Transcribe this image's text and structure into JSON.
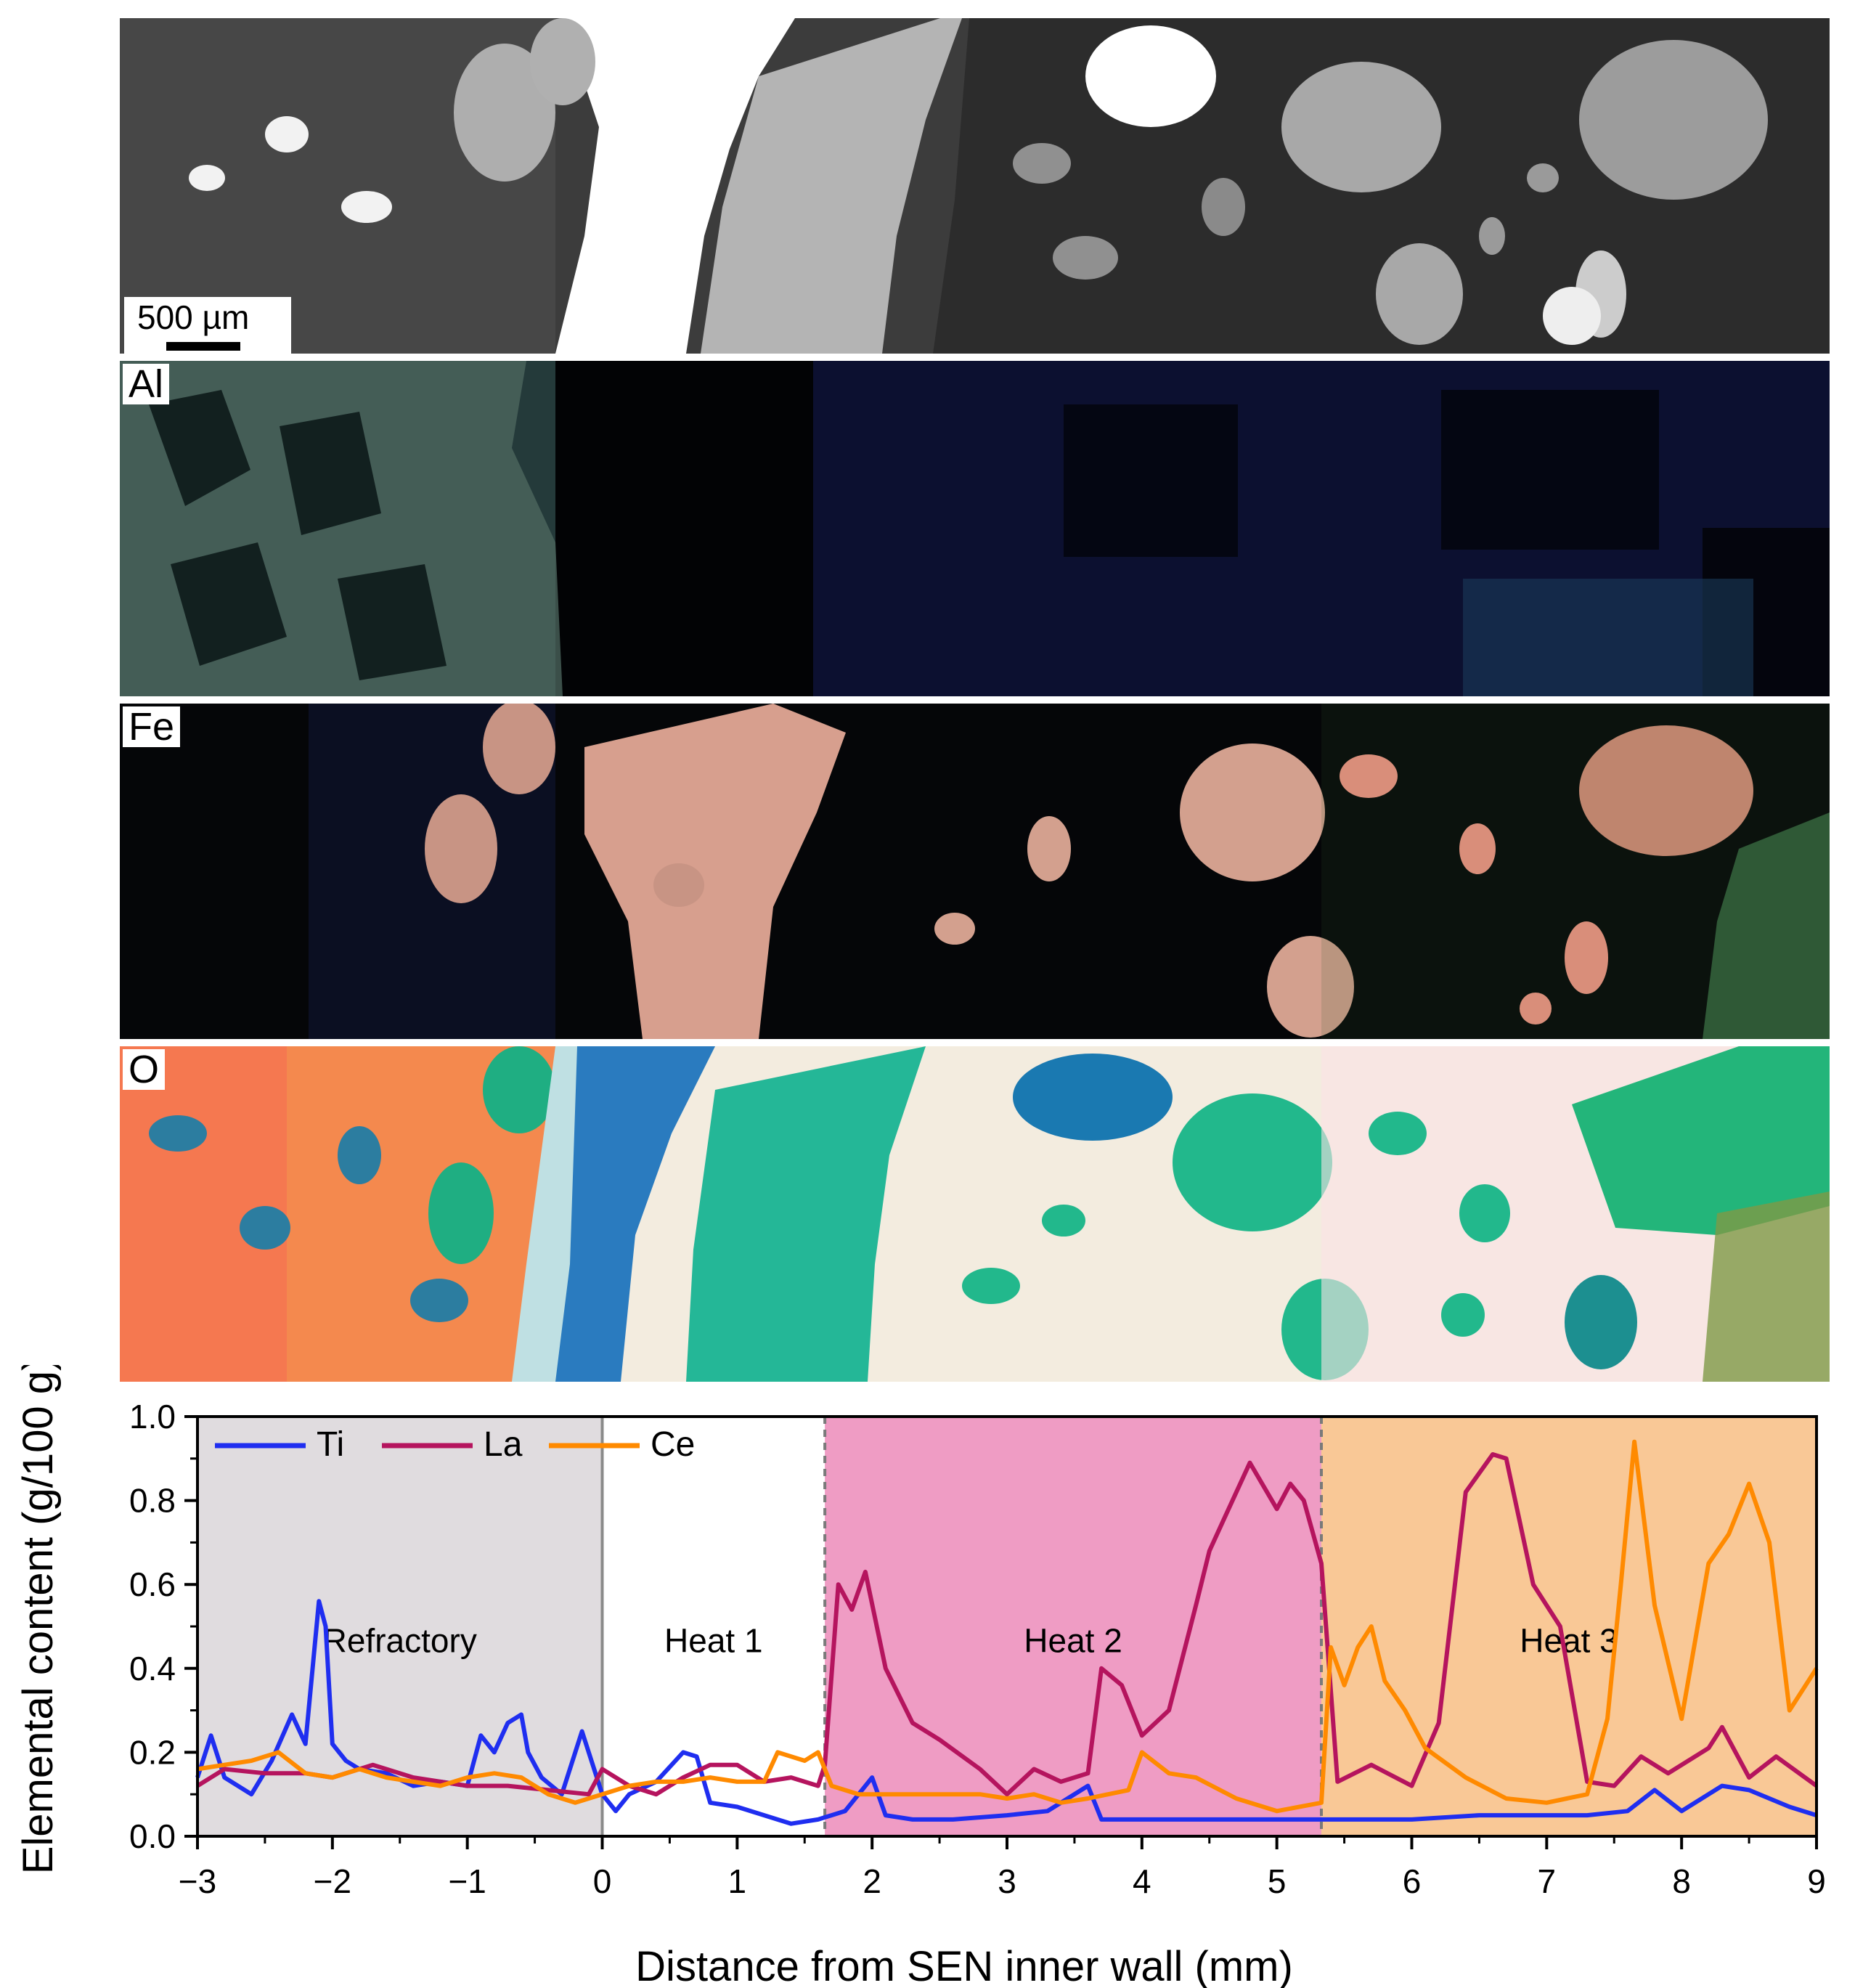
{
  "figure": {
    "scale_bar_label": "500 µm",
    "map_labels": {
      "al": "Al",
      "fe": "Fe",
      "o": "O"
    }
  },
  "chart_data": {
    "type": "line",
    "xlabel": "Distance from SEN inner wall (mm)",
    "ylabel": "Elemental content (g/100 g)",
    "xlim": [
      -3,
      9
    ],
    "ylim": [
      0,
      1.0
    ],
    "xticks": [
      -3,
      -2,
      -1,
      0,
      1,
      2,
      3,
      4,
      5,
      6,
      7,
      8,
      9
    ],
    "xtick_labels": [
      "−3",
      "−2",
      "−1",
      "0",
      "1",
      "2",
      "3",
      "4",
      "5",
      "6",
      "7",
      "8",
      "9"
    ],
    "yticks": [
      0,
      0.2,
      0.4,
      0.6,
      0.8,
      1.0
    ],
    "ytick_labels": [
      "0.0",
      "0.2",
      "0.4",
      "0.6",
      "0.8",
      "1.0"
    ],
    "legend_position": "top-left",
    "regions": [
      {
        "label": "Refractory",
        "x": [
          -3,
          0
        ],
        "color": "#e0dcdf"
      },
      {
        "label": "Heat 1",
        "x": [
          0,
          1.65
        ],
        "color": "#ffffff"
      },
      {
        "label": "Heat 2",
        "x": [
          1.65,
          5.33
        ],
        "color": "#ef9cc4"
      },
      {
        "label": "Heat 3",
        "x": [
          5.33,
          9
        ],
        "color": "#f9c896"
      }
    ],
    "region_label_y": 0.47,
    "series": [
      {
        "name": "Ti",
        "color": "#1f2ef0",
        "x": [
          -3,
          -2.9,
          -2.8,
          -2.6,
          -2.45,
          -2.3,
          -2.2,
          -2.1,
          -2.05,
          -2.0,
          -1.9,
          -1.8,
          -1.6,
          -1.4,
          -1.2,
          -1.0,
          -0.9,
          -0.8,
          -0.7,
          -0.6,
          -0.55,
          -0.45,
          -0.3,
          -0.15,
          -0.1,
          0,
          0.1,
          0.2,
          0.4,
          0.6,
          0.7,
          0.8,
          1.0,
          1.2,
          1.4,
          1.6,
          1.8,
          2.0,
          2.1,
          2.3,
          2.6,
          3.0,
          3.3,
          3.6,
          3.7,
          4.0,
          4.5,
          5.0,
          5.5,
          6.0,
          6.5,
          7.0,
          7.3,
          7.6,
          7.8,
          8.0,
          8.3,
          8.5,
          8.8,
          9.0
        ],
        "y": [
          0.14,
          0.24,
          0.14,
          0.1,
          0.18,
          0.29,
          0.22,
          0.56,
          0.5,
          0.22,
          0.18,
          0.16,
          0.15,
          0.12,
          0.13,
          0.12,
          0.24,
          0.2,
          0.27,
          0.29,
          0.2,
          0.14,
          0.1,
          0.25,
          0.2,
          0.1,
          0.06,
          0.1,
          0.13,
          0.2,
          0.19,
          0.08,
          0.07,
          0.05,
          0.03,
          0.04,
          0.06,
          0.14,
          0.05,
          0.04,
          0.04,
          0.05,
          0.06,
          0.12,
          0.04,
          0.04,
          0.04,
          0.04,
          0.04,
          0.04,
          0.05,
          0.05,
          0.05,
          0.06,
          0.11,
          0.06,
          0.12,
          0.11,
          0.07,
          0.05
        ]
      },
      {
        "name": "La",
        "color": "#b5145e",
        "x": [
          -3,
          -2.8,
          -2.5,
          -2.2,
          -2.0,
          -1.7,
          -1.4,
          -1.2,
          -1.0,
          -0.7,
          -0.4,
          -0.1,
          0,
          0.2,
          0.4,
          0.6,
          0.8,
          1.0,
          1.2,
          1.4,
          1.6,
          1.65,
          1.75,
          1.85,
          1.95,
          2.1,
          2.3,
          2.5,
          2.8,
          3.0,
          3.2,
          3.4,
          3.6,
          3.7,
          3.85,
          4.0,
          4.2,
          4.4,
          4.5,
          4.6,
          4.8,
          5.0,
          5.1,
          5.2,
          5.33,
          5.45,
          5.7,
          6.0,
          6.2,
          6.4,
          6.6,
          6.7,
          6.9,
          7.1,
          7.3,
          7.5,
          7.7,
          7.9,
          8.2,
          8.3,
          8.5,
          8.7,
          9.0
        ],
        "y": [
          0.12,
          0.16,
          0.15,
          0.15,
          0.14,
          0.17,
          0.14,
          0.13,
          0.12,
          0.12,
          0.11,
          0.1,
          0.16,
          0.12,
          0.1,
          0.14,
          0.17,
          0.17,
          0.13,
          0.14,
          0.12,
          0.17,
          0.6,
          0.54,
          0.63,
          0.4,
          0.27,
          0.23,
          0.16,
          0.1,
          0.16,
          0.13,
          0.15,
          0.4,
          0.36,
          0.24,
          0.3,
          0.55,
          0.68,
          0.75,
          0.89,
          0.78,
          0.84,
          0.8,
          0.65,
          0.13,
          0.17,
          0.12,
          0.27,
          0.82,
          0.91,
          0.9,
          0.6,
          0.5,
          0.13,
          0.12,
          0.19,
          0.15,
          0.21,
          0.26,
          0.14,
          0.19,
          0.12
        ]
      },
      {
        "name": "Ce",
        "color": "#ff8a00",
        "x": [
          -3,
          -2.8,
          -2.6,
          -2.4,
          -2.2,
          -2.0,
          -1.8,
          -1.6,
          -1.4,
          -1.2,
          -1.0,
          -0.8,
          -0.6,
          -0.4,
          -0.2,
          0,
          0.2,
          0.4,
          0.6,
          0.8,
          1.0,
          1.2,
          1.3,
          1.5,
          1.6,
          1.7,
          1.9,
          2.2,
          2.5,
          2.8,
          3.0,
          3.2,
          3.4,
          3.6,
          3.9,
          4.0,
          4.2,
          4.4,
          4.7,
          5.0,
          5.33,
          5.4,
          5.5,
          5.6,
          5.7,
          5.8,
          5.95,
          6.1,
          6.4,
          6.7,
          7.0,
          7.3,
          7.45,
          7.55,
          7.65,
          7.8,
          8.0,
          8.2,
          8.35,
          8.5,
          8.65,
          8.8,
          9.0
        ],
        "y": [
          0.16,
          0.17,
          0.18,
          0.2,
          0.15,
          0.14,
          0.16,
          0.14,
          0.13,
          0.12,
          0.14,
          0.15,
          0.14,
          0.1,
          0.08,
          0.1,
          0.12,
          0.13,
          0.13,
          0.14,
          0.13,
          0.13,
          0.2,
          0.18,
          0.2,
          0.12,
          0.1,
          0.1,
          0.1,
          0.1,
          0.09,
          0.1,
          0.08,
          0.09,
          0.11,
          0.2,
          0.15,
          0.14,
          0.09,
          0.06,
          0.08,
          0.45,
          0.36,
          0.45,
          0.5,
          0.37,
          0.3,
          0.21,
          0.14,
          0.09,
          0.08,
          0.1,
          0.28,
          0.6,
          0.94,
          0.55,
          0.28,
          0.65,
          0.72,
          0.84,
          0.7,
          0.3,
          0.4
        ]
      }
    ]
  }
}
